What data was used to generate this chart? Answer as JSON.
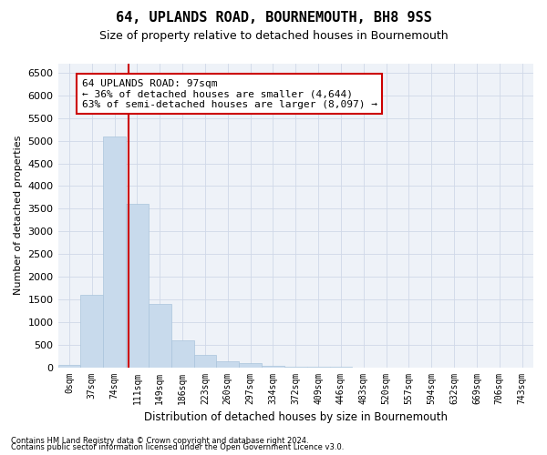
{
  "title": "64, UPLANDS ROAD, BOURNEMOUTH, BH8 9SS",
  "subtitle": "Size of property relative to detached houses in Bournemouth",
  "xlabel": "Distribution of detached houses by size in Bournemouth",
  "ylabel": "Number of detached properties",
  "footer_line1": "Contains HM Land Registry data © Crown copyright and database right 2024.",
  "footer_line2": "Contains public sector information licensed under the Open Government Licence v3.0.",
  "bar_labels": [
    "0sqm",
    "37sqm",
    "74sqm",
    "111sqm",
    "149sqm",
    "186sqm",
    "223sqm",
    "260sqm",
    "297sqm",
    "334sqm",
    "372sqm",
    "409sqm",
    "446sqm",
    "483sqm",
    "520sqm",
    "557sqm",
    "594sqm",
    "632sqm",
    "669sqm",
    "706sqm",
    "743sqm"
  ],
  "bar_values": [
    50,
    1600,
    5100,
    3600,
    1400,
    600,
    270,
    130,
    90,
    40,
    15,
    5,
    2,
    1,
    0,
    0,
    0,
    0,
    0,
    0,
    0
  ],
  "bar_color": "#c8daec",
  "bar_edge_color": "#aac4dc",
  "grid_color": "#d0d8e8",
  "background_color": "#eef2f8",
  "vline_x": 2.62,
  "vline_color": "#cc0000",
  "annotation_text": "64 UPLANDS ROAD: 97sqm\n← 36% of detached houses are smaller (4,644)\n63% of semi-detached houses are larger (8,097) →",
  "annotation_box_color": "#ffffff",
  "annotation_box_edge": "#cc0000",
  "ylim": [
    0,
    6700
  ],
  "yticks": [
    0,
    500,
    1000,
    1500,
    2000,
    2500,
    3000,
    3500,
    4000,
    4500,
    5000,
    5500,
    6000,
    6500
  ],
  "title_fontsize": 11,
  "subtitle_fontsize": 9
}
